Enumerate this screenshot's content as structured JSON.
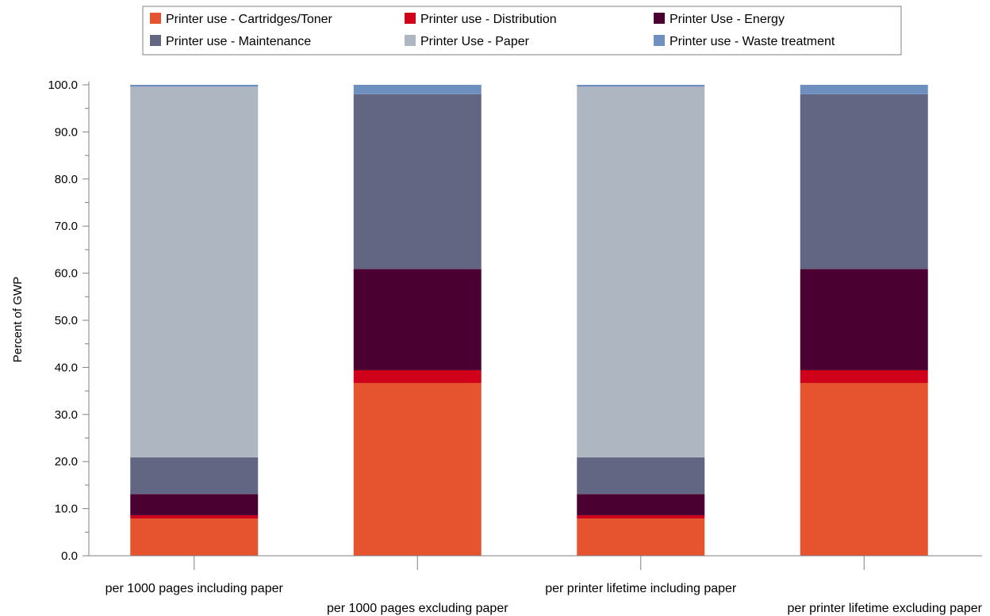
{
  "chart_data": {
    "type": "bar",
    "stacked": true,
    "title": "",
    "xlabel": "",
    "ylabel": "Percent of GWP",
    "ylim": [
      0,
      100
    ],
    "y_ticks": [
      "0.0",
      "10.0",
      "20.0",
      "30.0",
      "40.0",
      "50.0",
      "60.0",
      "70.0",
      "80.0",
      "90.0",
      "100.0"
    ],
    "grid": false,
    "legend_position": "top",
    "categories": [
      "per 1000 pages including paper",
      "per 1000 pages excluding paper",
      "per printer lifetime including paper",
      "per printer lifetime excluding paper"
    ],
    "series": [
      {
        "name": "Printer use - Cartridges/Toner",
        "color": "#E5532F",
        "values": [
          7.9,
          36.7,
          7.9,
          36.7
        ]
      },
      {
        "name": "Printer use - Distribution",
        "color": "#D0021B",
        "values": [
          0.7,
          2.7,
          0.7,
          2.7
        ]
      },
      {
        "name": "Printer Use - Energy",
        "color": "#4A0031",
        "values": [
          4.5,
          21.5,
          4.5,
          21.5
        ]
      },
      {
        "name": "Printer use - Maintenance",
        "color": "#636683",
        "values": [
          7.8,
          37.1,
          7.8,
          37.1
        ]
      },
      {
        "name": "Printer Use - Paper",
        "color": "#ADB6C1",
        "values": [
          78.7,
          0,
          78.7,
          0
        ]
      },
      {
        "name": "Printer use - Waste treatment",
        "color": "#6F8FBF",
        "values": [
          0.4,
          2.0,
          0.4,
          2.0
        ]
      }
    ]
  }
}
